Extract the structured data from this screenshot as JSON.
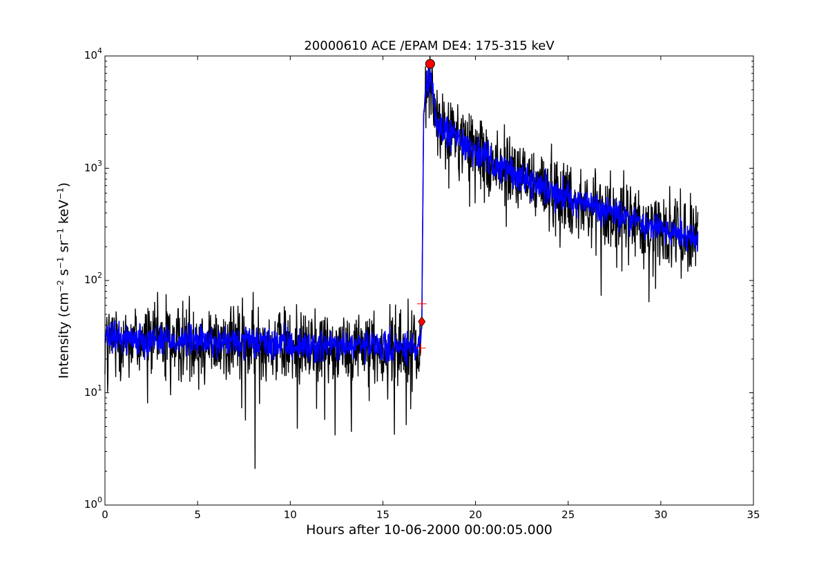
{
  "chart_data": {
    "type": "line",
    "title": "20000610 ACE /EPAM DE4: 175-315 keV",
    "xlabel": "Hours after 10-06-2000 00:00:05.000",
    "ylabel_prefix": "Intensity (cm",
    "ylabel_sup1": "−2",
    "ylabel_s": "s",
    "ylabel_sup2": "−1",
    "ylabel_sr": "sr",
    "ylabel_sup3": "−1",
    "ylabel_kev": "keV",
    "ylabel_sup4": "−1",
    "ylabel_suffix": ")",
    "xlim": [
      0,
      35
    ],
    "ylim": [
      1,
      10000
    ],
    "yscale": "log",
    "grid": false,
    "xticks": [
      0,
      5,
      10,
      15,
      20,
      25,
      30,
      35
    ],
    "xtick_labels": [
      "0",
      "5",
      "10",
      "15",
      "20",
      "25",
      "30",
      "35"
    ],
    "yticks": [
      1,
      10,
      100,
      1000,
      10000
    ],
    "ytick_base": [
      "10",
      "10",
      "10",
      "10",
      "10"
    ],
    "ytick_exp": [
      "0",
      "1",
      "2",
      "3",
      "4"
    ],
    "series": [
      {
        "color": "#000000",
        "style": "noisy raw intensity",
        "points": [
          [
            0,
            30
          ],
          [
            1,
            31
          ],
          [
            2,
            30
          ],
          [
            3,
            30
          ],
          [
            4,
            29
          ],
          [
            5,
            29
          ],
          [
            6,
            28
          ],
          [
            7,
            28
          ],
          [
            8,
            28
          ],
          [
            9,
            27
          ],
          [
            10,
            27
          ],
          [
            11,
            26
          ],
          [
            12,
            26
          ],
          [
            13,
            26
          ],
          [
            14,
            26
          ],
          [
            15,
            25
          ],
          [
            16,
            25
          ],
          [
            17.0,
            25
          ],
          [
            17.1,
            40
          ],
          [
            17.2,
            3000
          ],
          [
            17.4,
            5500
          ],
          [
            17.6,
            6200
          ],
          [
            17.8,
            3300
          ],
          [
            18,
            2300
          ],
          [
            19,
            1900
          ],
          [
            20,
            1400
          ],
          [
            21,
            1100
          ],
          [
            22,
            900
          ],
          [
            23,
            760
          ],
          [
            24,
            640
          ],
          [
            25,
            560
          ],
          [
            26,
            480
          ],
          [
            27,
            420
          ],
          [
            28,
            370
          ],
          [
            29,
            320
          ],
          [
            30,
            290
          ],
          [
            31,
            265
          ],
          [
            32,
            240
          ]
        ],
        "minimum": [
          8.1,
          2.1
        ],
        "noise_dex": 0.17
      },
      {
        "color": "#0000ff",
        "style": "smoothed intensity",
        "points": [
          [
            0,
            30
          ],
          [
            1,
            31
          ],
          [
            2,
            30
          ],
          [
            3,
            30
          ],
          [
            4,
            29
          ],
          [
            5,
            29
          ],
          [
            6,
            28
          ],
          [
            7,
            28
          ],
          [
            8,
            28
          ],
          [
            9,
            27
          ],
          [
            10,
            27
          ],
          [
            11,
            26
          ],
          [
            12,
            26
          ],
          [
            13,
            26
          ],
          [
            14,
            26
          ],
          [
            15,
            25
          ],
          [
            16,
            25
          ],
          [
            17.0,
            25
          ],
          [
            17.1,
            40
          ],
          [
            17.2,
            3000
          ],
          [
            17.4,
            5500
          ],
          [
            17.6,
            6200
          ],
          [
            17.8,
            3300
          ],
          [
            18,
            2300
          ],
          [
            19,
            1900
          ],
          [
            20,
            1400
          ],
          [
            21,
            1100
          ],
          [
            22,
            900
          ],
          [
            23,
            760
          ],
          [
            24,
            640
          ],
          [
            25,
            560
          ],
          [
            26,
            480
          ],
          [
            27,
            420
          ],
          [
            28,
            370
          ],
          [
            29,
            320
          ],
          [
            30,
            290
          ],
          [
            31,
            265
          ],
          [
            32,
            240
          ]
        ],
        "noise_dex": 0.07
      }
    ],
    "markers": [
      {
        "kind": "circle",
        "x": 17.55,
        "y": 8500,
        "color": "#ff0000"
      },
      {
        "kind": "diamond",
        "x": 17.1,
        "y": 43,
        "color": "#ff0000"
      },
      {
        "kind": "plus",
        "x": 17.1,
        "y": 62,
        "color": "#ff0000"
      },
      {
        "kind": "plus",
        "x": 17.05,
        "y": 25,
        "color": "#ff0000"
      }
    ]
  }
}
